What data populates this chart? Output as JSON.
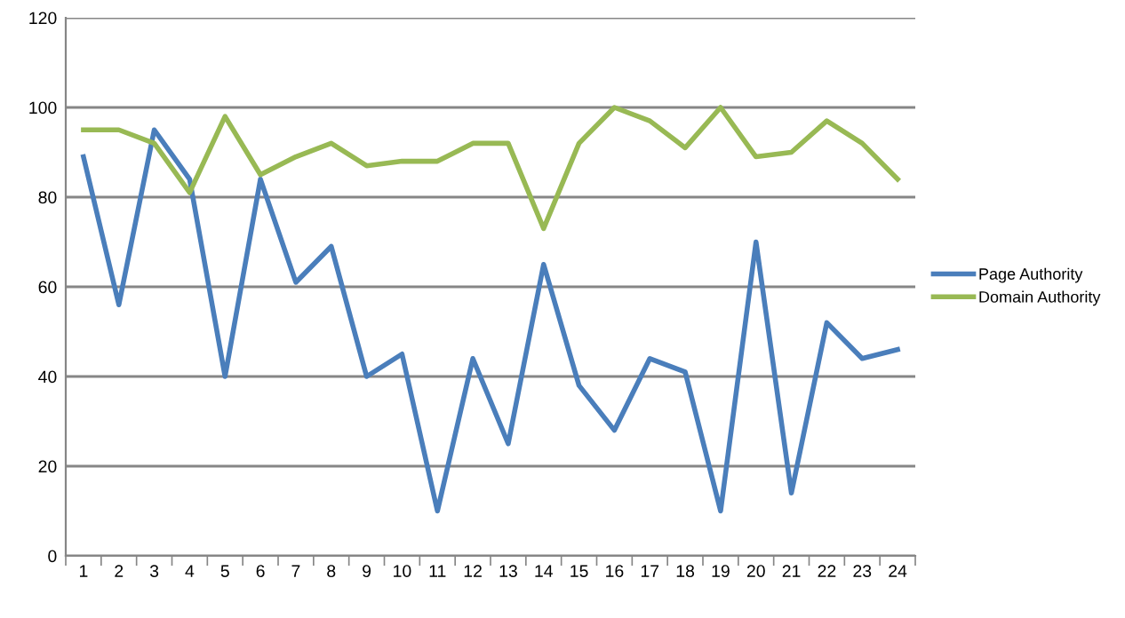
{
  "chart_data": {
    "type": "line",
    "categories": [
      "1",
      "2",
      "3",
      "4",
      "5",
      "6",
      "7",
      "8",
      "9",
      "10",
      "11",
      "12",
      "13",
      "14",
      "15",
      "16",
      "17",
      "18",
      "19",
      "20",
      "21",
      "22",
      "23",
      "24"
    ],
    "series": [
      {
        "name": "Page Authority",
        "color": "#4a7ebb",
        "values": [
          89,
          56,
          95,
          84,
          40,
          84,
          61,
          69,
          40,
          45,
          10,
          44,
          25,
          65,
          38,
          28,
          44,
          41,
          10,
          70,
          14,
          52,
          44,
          46
        ]
      },
      {
        "name": "Domain Authority",
        "color": "#98b954",
        "values": [
          95,
          95,
          92,
          81,
          98,
          85,
          89,
          92,
          87,
          88,
          88,
          92,
          92,
          73,
          92,
          100,
          97,
          91,
          100,
          89,
          90,
          97,
          92,
          84
        ]
      }
    ],
    "ylim": [
      0,
      120
    ],
    "yticks": [
      0,
      20,
      40,
      60,
      80,
      100,
      120
    ],
    "grid": "y",
    "legend": "right",
    "marker": "none",
    "line_style": "solid"
  }
}
